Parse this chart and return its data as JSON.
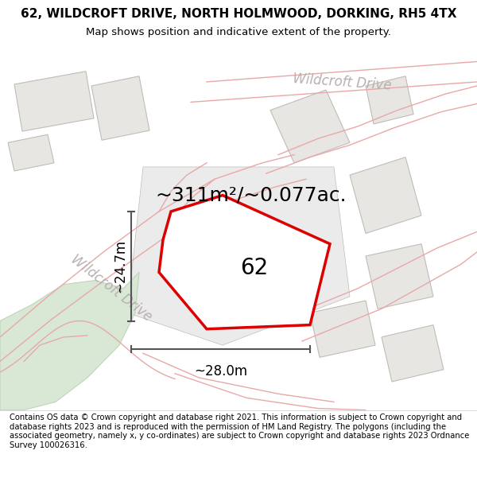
{
  "title": "62, WILDCROFT DRIVE, NORTH HOLMWOOD, DORKING, RH5 4TX",
  "subtitle": "Map shows position and indicative extent of the property.",
  "footer": "Contains OS data © Crown copyright and database right 2021. This information is subject to Crown copyright and database rights 2023 and is reproduced with the permission of HM Land Registry. The polygons (including the associated geometry, namely x, y co-ordinates) are subject to Crown copyright and database rights 2023 Ordnance Survey 100026316.",
  "map_bg": "#f2f0ed",
  "plot_color_fill": "#ffffff",
  "plot_color_edge": "#dd0000",
  "road_color": "#e8a8a8",
  "building_edge": "#c0bcb8",
  "building_fill": "#e8e6e2",
  "green_fill": "#d8e8d4",
  "green_edge": "#c0d4bc",
  "dim_color": "#555555",
  "street_color": "#b8b0b0",
  "label_62": "62",
  "area_label": "~311m²/~0.077ac.",
  "dim_h": "~24.7m",
  "dim_w": "~28.0m",
  "street_label_diag": "Wildcroft Drive",
  "street_label_top": "Wildcroft Drive",
  "title_fontsize": 11,
  "subtitle_fontsize": 9.5,
  "footer_fontsize": 7.2,
  "label_fontsize": 20,
  "area_fontsize": 18,
  "dim_fontsize": 12,
  "street_fontsize": 12
}
